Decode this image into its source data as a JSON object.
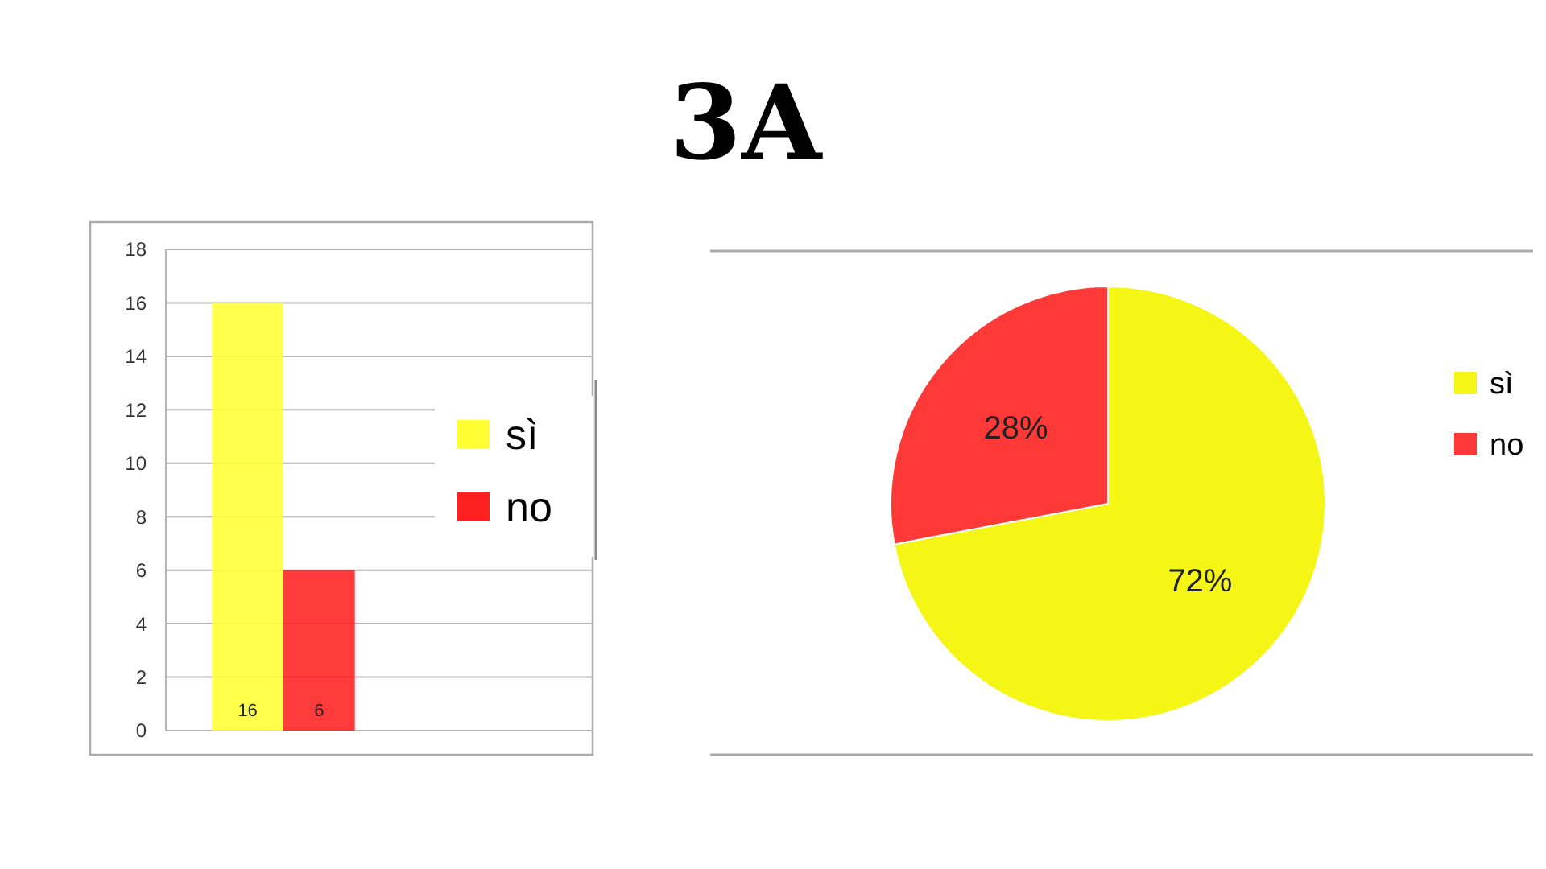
{
  "chart_data": [
    {
      "type": "bar",
      "categories": [
        null
      ],
      "series": [
        {
          "name": "sì",
          "color": "#ffff33",
          "values": [
            16
          ]
        },
        {
          "name": "no",
          "color": "#ff2020",
          "values": [
            6
          ]
        }
      ],
      "ylim": [
        0,
        18
      ],
      "yticks": [
        0,
        2,
        4,
        6,
        8,
        10,
        12,
        14,
        16,
        18
      ],
      "grid": "y",
      "legend": "right",
      "data_labels": true
    },
    {
      "type": "pie",
      "title": "3A",
      "categories": [
        "sì",
        "no"
      ],
      "values": [
        72,
        28
      ],
      "colors": [
        "#f5f516",
        "#ff3838"
      ],
      "value_labels": [
        "72%",
        "28%"
      ],
      "legend": "right"
    }
  ]
}
